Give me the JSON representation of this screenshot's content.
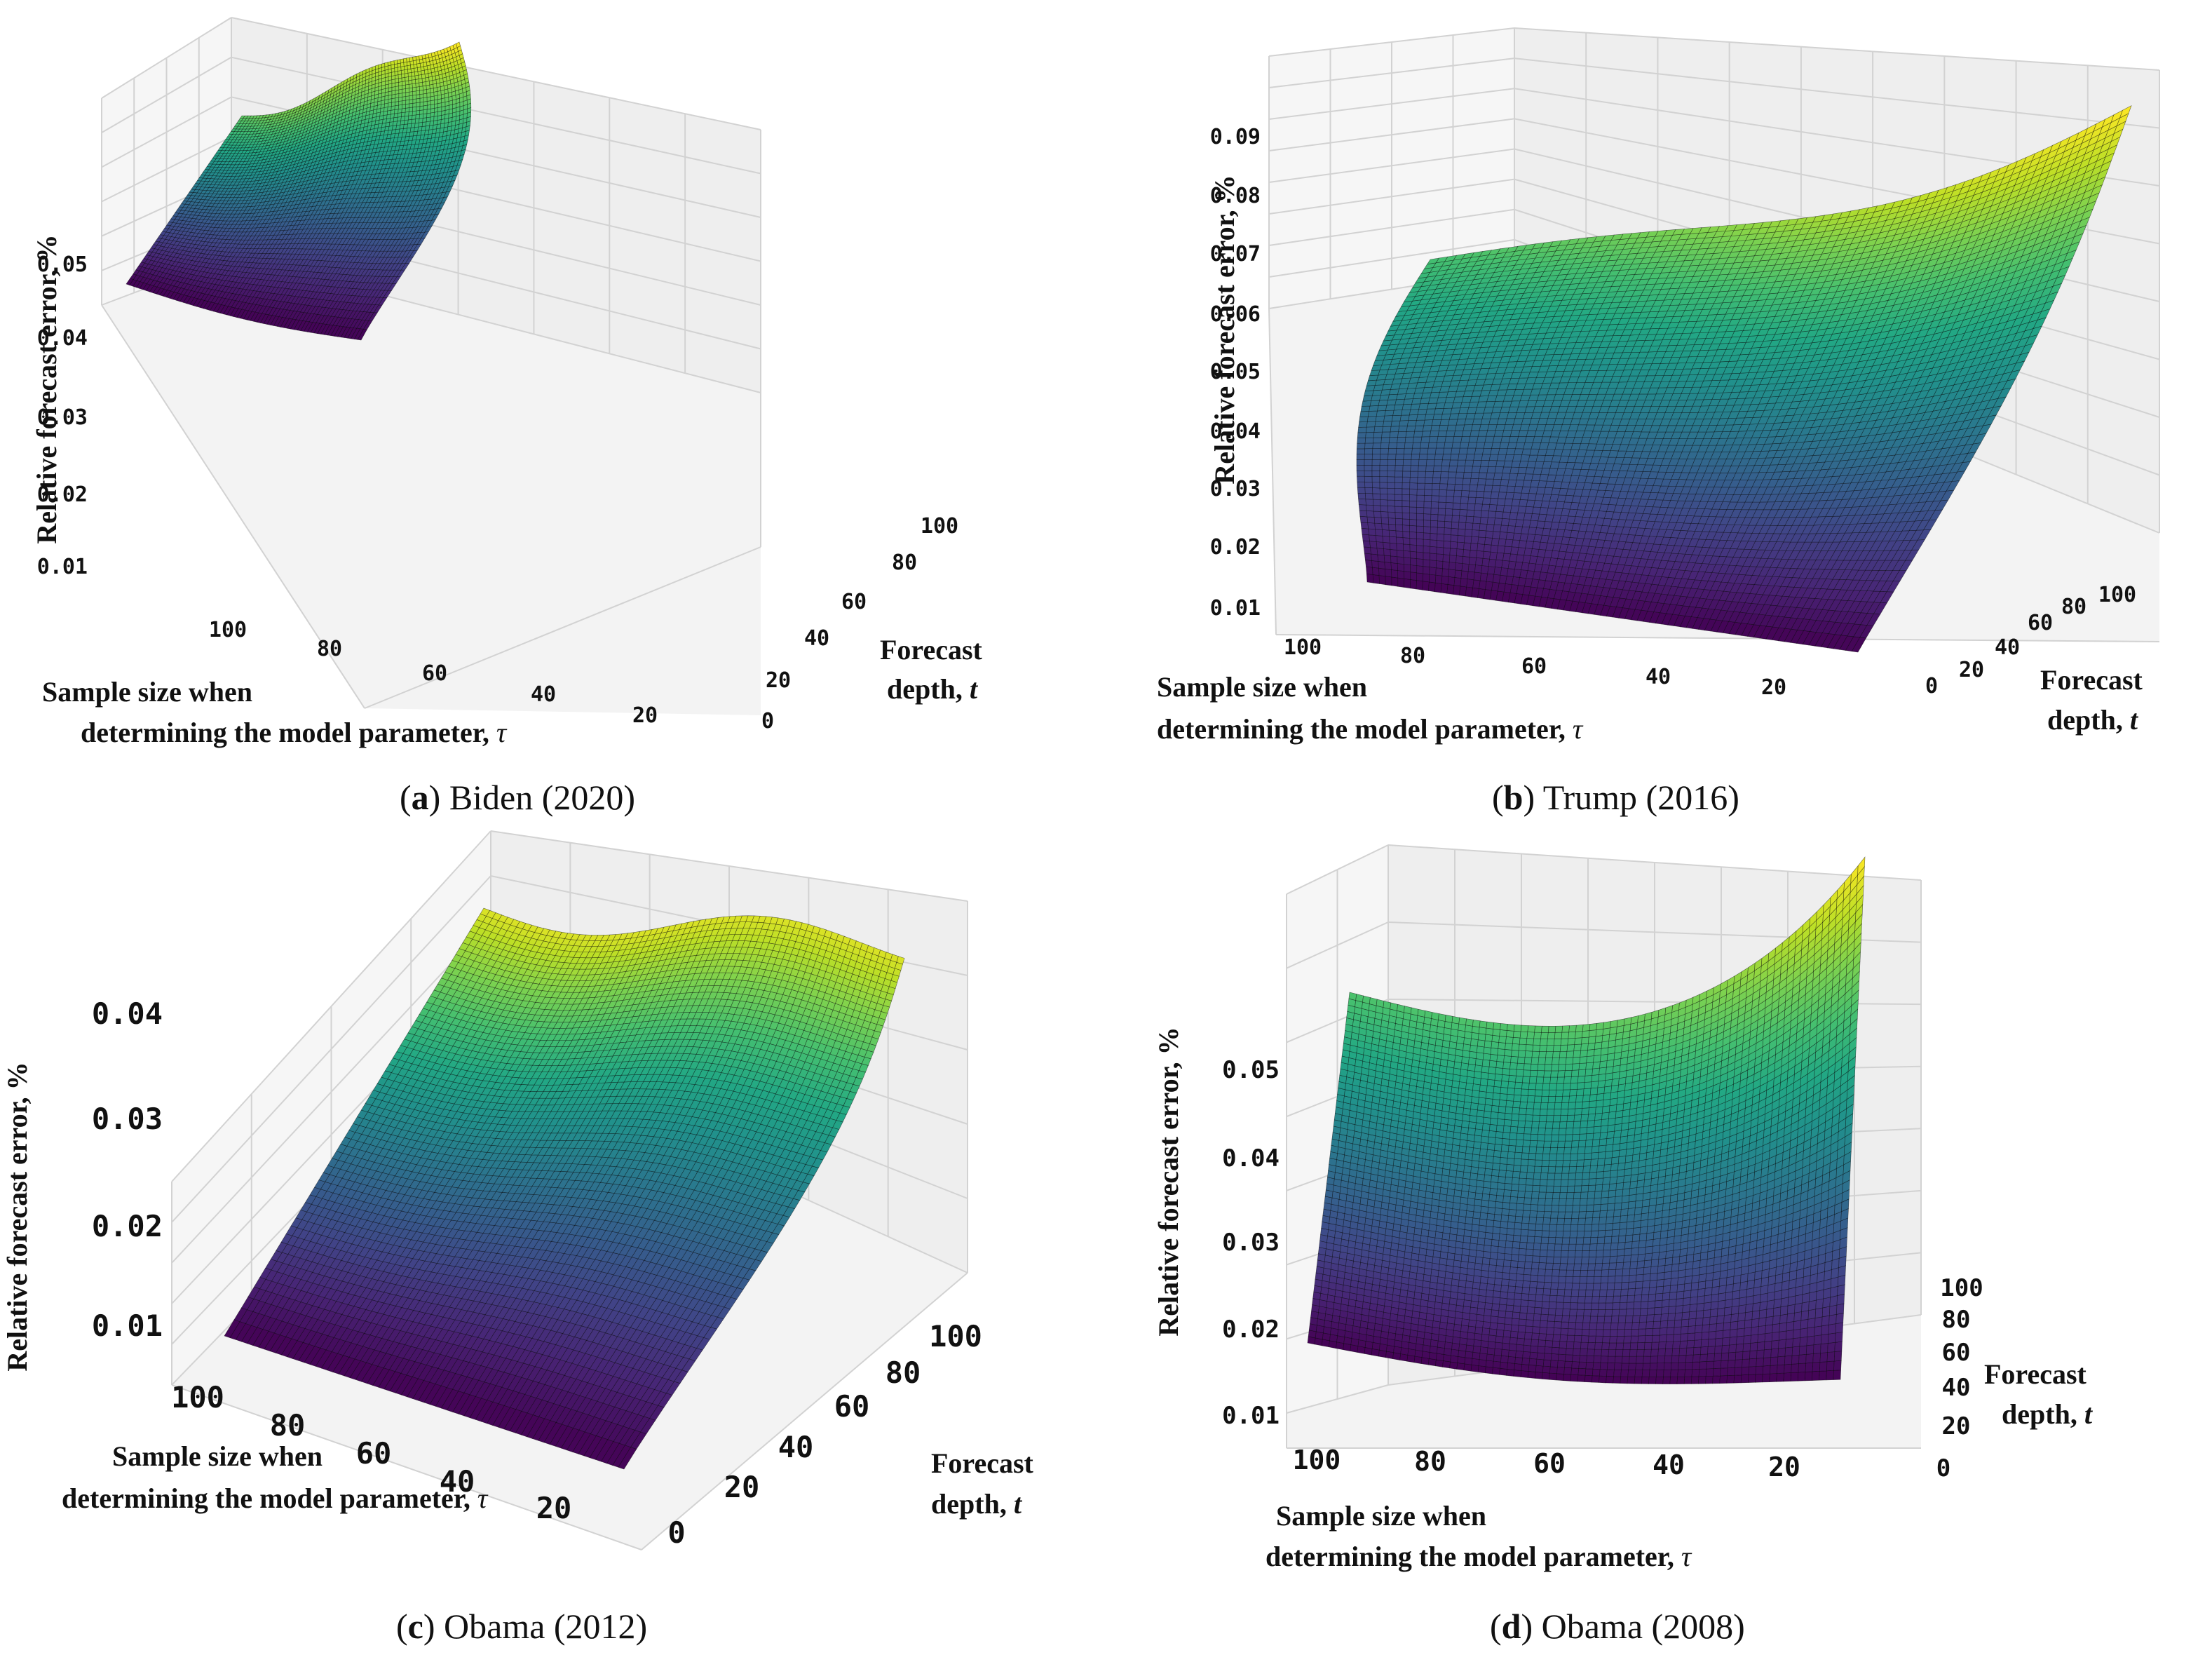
{
  "chart_data": [
    {
      "type": "surface3d",
      "panel": "a",
      "caption_letter": "a",
      "caption_text": "Biden (2020)",
      "zlabel": "Relative forecast error, %",
      "xlabel_line1": "Sample size when",
      "xlabel_line2": "determining the model parameter,",
      "xlabel_symbol": "τ",
      "ylabel_line1": "Forecast",
      "ylabel_line2": "depth,",
      "ylabel_symbol": "t",
      "zticks": [
        "0.01",
        "0.02",
        "0.03",
        "0.04",
        "0.05"
      ],
      "xticks": [
        "100",
        "80",
        "60",
        "40",
        "20"
      ],
      "yticks": [
        "0",
        "20",
        "40",
        "60",
        "80",
        "100"
      ],
      "tau_range": [
        5,
        100
      ],
      "t_range": [
        0,
        100
      ],
      "zlim": [
        0.005,
        0.06
      ],
      "colormap": "viridis"
    },
    {
      "type": "surface3d",
      "panel": "b",
      "caption_letter": "b",
      "caption_text": "Trump (2016)",
      "zlabel": "Relative forecast error, %",
      "xlabel_line1": "Sample size when",
      "xlabel_line2": "determining the model parameter,",
      "xlabel_symbol": "τ",
      "ylabel_line1": "Forecast",
      "ylabel_line2": "depth,",
      "ylabel_symbol": "t",
      "zticks": [
        "0.01",
        "0.02",
        "0.03",
        "0.04",
        "0.05",
        "0.06",
        "0.07",
        "0.08",
        "0.09"
      ],
      "xticks": [
        "100",
        "80",
        "60",
        "40",
        "20"
      ],
      "yticks": [
        "0",
        "20",
        "40",
        "60",
        "80",
        "100"
      ],
      "tau_range": [
        5,
        100
      ],
      "t_range": [
        0,
        100
      ],
      "zlim": [
        0.005,
        0.095
      ],
      "colormap": "viridis"
    },
    {
      "type": "surface3d",
      "panel": "c",
      "caption_letter": "c",
      "caption_text": "Obama (2012)",
      "zlabel": "Relative forecast error, %",
      "xlabel_line1": "Sample size when",
      "xlabel_line2": "determining the model parameter,",
      "xlabel_symbol": "τ",
      "ylabel_line1": "Forecast",
      "ylabel_line2": "depth,",
      "ylabel_symbol": "t",
      "zticks": [
        "0.01",
        "0.02",
        "0.03",
        "0.04"
      ],
      "xticks": [
        "100",
        "80",
        "60",
        "40",
        "20"
      ],
      "yticks": [
        "0",
        "20",
        "40",
        "60",
        "80",
        "100"
      ],
      "tau_range": [
        5,
        100
      ],
      "t_range": [
        0,
        100
      ],
      "zlim": [
        0.005,
        0.045
      ],
      "colormap": "viridis"
    },
    {
      "type": "surface3d",
      "panel": "d",
      "caption_letter": "d",
      "caption_text": "Obama (2008)",
      "zlabel": "Relative forecast error, %",
      "xlabel_line1": "Sample size when",
      "xlabel_line2": "determining the model parameter,",
      "xlabel_symbol": "τ",
      "ylabel_line1": "Forecast",
      "ylabel_line2": "depth,",
      "ylabel_symbol": "t",
      "zticks": [
        "0.01",
        "0.02",
        "0.03",
        "0.04",
        "0.05"
      ],
      "xticks": [
        "100",
        "80",
        "60",
        "40",
        "20"
      ],
      "yticks": [
        "0",
        "20",
        "40",
        "60",
        "80",
        "100"
      ],
      "tau_range": [
        5,
        100
      ],
      "t_range": [
        0,
        100
      ],
      "zlim": [
        0.005,
        0.058
      ],
      "colormap": "viridis"
    }
  ]
}
